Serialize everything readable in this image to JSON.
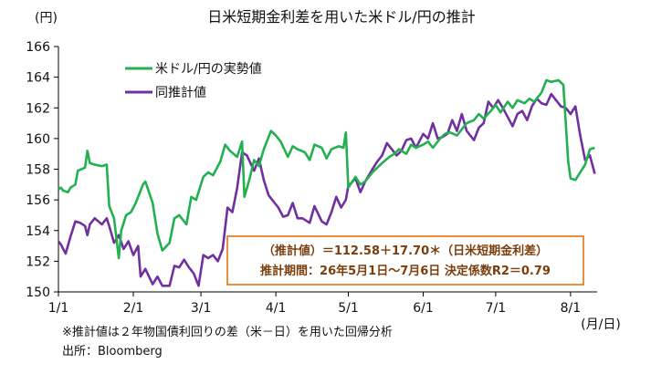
{
  "chart_data": {
    "type": "line",
    "title": "日米短期金利差を用いた米ドル/円の推計",
    "ylabel": "(円)",
    "xlabel": "(月/日)",
    "ylim": [
      150,
      166
    ],
    "yticks": [
      150,
      152,
      154,
      156,
      158,
      160,
      162,
      164,
      166
    ],
    "xlim": [
      "2026-01-01",
      "2026-08-12"
    ],
    "xticks": [
      {
        "date": "2026-01-01",
        "label": "1/1"
      },
      {
        "date": "2026-02-01",
        "label": "2/1"
      },
      {
        "date": "2026-03-01",
        "label": "3/1"
      },
      {
        "date": "2026-04-01",
        "label": "4/1"
      },
      {
        "date": "2026-05-01",
        "label": "5/1"
      },
      {
        "date": "2026-06-01",
        "label": "6/1"
      },
      {
        "date": "2026-07-01",
        "label": "7/1"
      },
      {
        "date": "2026-08-01",
        "label": "8/1"
      }
    ],
    "grid": false,
    "legend_position": "top-left",
    "series": [
      {
        "name": "米ドル/円の実勢値",
        "color": "#22b150",
        "points": [
          [
            "2026-01-01",
            156.7
          ],
          [
            "2026-01-02",
            156.8
          ],
          [
            "2026-01-03",
            156.6
          ],
          [
            "2026-01-05",
            156.5
          ],
          [
            "2026-01-06",
            156.8
          ],
          [
            "2026-01-08",
            157.0
          ],
          [
            "2026-01-09",
            157.9
          ],
          [
            "2026-01-12",
            158.1
          ],
          [
            "2026-01-13",
            159.2
          ],
          [
            "2026-01-14",
            158.4
          ],
          [
            "2026-01-16",
            158.3
          ],
          [
            "2026-01-19",
            158.2
          ],
          [
            "2026-01-21",
            158.3
          ],
          [
            "2026-01-22",
            155.6
          ],
          [
            "2026-01-24",
            154.8
          ],
          [
            "2026-01-26",
            152.2
          ],
          [
            "2026-01-27",
            154.0
          ],
          [
            "2026-01-29",
            155.0
          ],
          [
            "2026-01-31",
            155.2
          ],
          [
            "2026-02-02",
            155.8
          ],
          [
            "2026-02-05",
            157.0
          ],
          [
            "2026-02-06",
            157.2
          ],
          [
            "2026-02-09",
            155.8
          ],
          [
            "2026-02-11",
            153.8
          ],
          [
            "2026-02-13",
            152.7
          ],
          [
            "2026-02-16",
            153.2
          ],
          [
            "2026-02-18",
            154.8
          ],
          [
            "2026-02-20",
            155.0
          ],
          [
            "2026-02-23",
            154.4
          ],
          [
            "2026-02-25",
            156.2
          ],
          [
            "2026-02-27",
            156.0
          ],
          [
            "2026-03-02",
            157.5
          ],
          [
            "2026-03-04",
            157.8
          ],
          [
            "2026-03-06",
            157.6
          ],
          [
            "2026-03-09",
            158.5
          ],
          [
            "2026-03-11",
            159.6
          ],
          [
            "2026-03-13",
            159.2
          ],
          [
            "2026-03-16",
            158.8
          ],
          [
            "2026-03-18",
            159.8
          ],
          [
            "2026-03-19",
            156.2
          ],
          [
            "2026-03-21",
            157.3
          ],
          [
            "2026-03-23",
            158.6
          ],
          [
            "2026-03-25",
            158.2
          ],
          [
            "2026-03-27",
            159.3
          ],
          [
            "2026-03-30",
            160.5
          ],
          [
            "2026-04-01",
            160.2
          ],
          [
            "2026-04-03",
            159.8
          ],
          [
            "2026-04-06",
            158.8
          ],
          [
            "2026-04-08",
            159.5
          ],
          [
            "2026-04-10",
            159.3
          ],
          [
            "2026-04-13",
            159.1
          ],
          [
            "2026-04-15",
            158.6
          ],
          [
            "2026-04-17",
            159.6
          ],
          [
            "2026-04-20",
            159.4
          ],
          [
            "2026-04-22",
            158.7
          ],
          [
            "2026-04-24",
            159.3
          ],
          [
            "2026-04-27",
            159.5
          ],
          [
            "2026-04-29",
            159.4
          ],
          [
            "2026-04-30",
            160.4
          ],
          [
            "2026-05-01",
            156.8
          ],
          [
            "2026-05-04",
            157.5
          ],
          [
            "2026-05-06",
            157.0
          ],
          [
            "2026-05-08",
            157.2
          ],
          [
            "2026-05-11",
            157.8
          ],
          [
            "2026-05-13",
            158.1
          ],
          [
            "2026-05-15",
            158.4
          ],
          [
            "2026-05-18",
            158.8
          ],
          [
            "2026-05-20",
            159.0
          ],
          [
            "2026-05-22",
            159.3
          ],
          [
            "2026-05-25",
            159.0
          ],
          [
            "2026-05-27",
            159.6
          ],
          [
            "2026-05-29",
            159.4
          ],
          [
            "2026-06-01",
            159.6
          ],
          [
            "2026-06-03",
            159.8
          ],
          [
            "2026-06-05",
            159.4
          ],
          [
            "2026-06-08",
            160.0
          ],
          [
            "2026-06-10",
            160.3
          ],
          [
            "2026-06-12",
            160.4
          ],
          [
            "2026-06-15",
            160.2
          ],
          [
            "2026-06-17",
            160.6
          ],
          [
            "2026-06-19",
            161.0
          ],
          [
            "2026-06-22",
            161.2
          ],
          [
            "2026-06-24",
            161.6
          ],
          [
            "2026-06-26",
            161.3
          ],
          [
            "2026-06-29",
            161.8
          ],
          [
            "2026-07-01",
            162.2
          ],
          [
            "2026-07-03",
            161.7
          ],
          [
            "2026-07-06",
            162.4
          ],
          [
            "2026-07-08",
            162.0
          ],
          [
            "2026-07-10",
            162.5
          ],
          [
            "2026-07-13",
            162.3
          ],
          [
            "2026-07-15",
            162.6
          ],
          [
            "2026-07-17",
            162.4
          ],
          [
            "2026-07-20",
            163.0
          ],
          [
            "2026-07-22",
            163.8
          ],
          [
            "2026-07-24",
            163.7
          ],
          [
            "2026-07-27",
            163.8
          ],
          [
            "2026-07-29",
            163.5
          ],
          [
            "2026-07-31",
            158.5
          ],
          [
            "2026-08-01",
            157.4
          ],
          [
            "2026-08-03",
            157.3
          ],
          [
            "2026-08-05",
            157.8
          ],
          [
            "2026-08-07",
            158.3
          ],
          [
            "2026-08-09",
            159.3
          ],
          [
            "2026-08-11",
            159.4
          ]
        ]
      },
      {
        "name": "同推計値",
        "color": "#7030a0",
        "points": [
          [
            "2026-01-01",
            153.3
          ],
          [
            "2026-01-02",
            153.1
          ],
          [
            "2026-01-04",
            152.5
          ],
          [
            "2026-01-06",
            153.6
          ],
          [
            "2026-01-08",
            154.6
          ],
          [
            "2026-01-10",
            154.5
          ],
          [
            "2026-01-12",
            154.3
          ],
          [
            "2026-01-13",
            153.7
          ],
          [
            "2026-01-14",
            154.4
          ],
          [
            "2026-01-16",
            154.8
          ],
          [
            "2026-01-19",
            154.4
          ],
          [
            "2026-01-21",
            154.8
          ],
          [
            "2026-01-22",
            154.3
          ],
          [
            "2026-01-24",
            153.2
          ],
          [
            "2026-01-26",
            153.7
          ],
          [
            "2026-01-28",
            152.8
          ],
          [
            "2026-01-30",
            153.3
          ],
          [
            "2026-02-01",
            152.4
          ],
          [
            "2026-02-03",
            153.0
          ],
          [
            "2026-02-04",
            151.0
          ],
          [
            "2026-02-06",
            151.5
          ],
          [
            "2026-02-09",
            150.5
          ],
          [
            "2026-02-11",
            151.0
          ],
          [
            "2026-02-13",
            150.4
          ],
          [
            "2026-02-16",
            150.4
          ],
          [
            "2026-02-18",
            151.7
          ],
          [
            "2026-02-20",
            151.6
          ],
          [
            "2026-02-22",
            152.1
          ],
          [
            "2026-02-24",
            151.6
          ],
          [
            "2026-02-26",
            151.2
          ],
          [
            "2026-02-28",
            150.4
          ],
          [
            "2026-03-02",
            152.4
          ],
          [
            "2026-03-04",
            152.2
          ],
          [
            "2026-03-06",
            152.4
          ],
          [
            "2026-03-08",
            152.0
          ],
          [
            "2026-03-10",
            152.8
          ],
          [
            "2026-03-12",
            155.5
          ],
          [
            "2026-03-14",
            155.2
          ],
          [
            "2026-03-16",
            156.8
          ],
          [
            "2026-03-18",
            159.1
          ],
          [
            "2026-03-20",
            158.9
          ],
          [
            "2026-03-23",
            157.9
          ],
          [
            "2026-03-25",
            158.7
          ],
          [
            "2026-03-27",
            157.3
          ],
          [
            "2026-03-29",
            156.3
          ],
          [
            "2026-03-31",
            155.9
          ],
          [
            "2026-04-02",
            155.5
          ],
          [
            "2026-04-04",
            154.9
          ],
          [
            "2026-04-06",
            155.0
          ],
          [
            "2026-04-08",
            155.8
          ],
          [
            "2026-04-10",
            154.8
          ],
          [
            "2026-04-12",
            154.8
          ],
          [
            "2026-04-15",
            154.5
          ],
          [
            "2026-04-17",
            155.6
          ],
          [
            "2026-04-20",
            154.6
          ],
          [
            "2026-04-22",
            154.4
          ],
          [
            "2026-04-24",
            155.2
          ],
          [
            "2026-04-26",
            156.2
          ],
          [
            "2026-04-28",
            155.5
          ],
          [
            "2026-04-30",
            156.0
          ],
          [
            "2026-05-01",
            156.9
          ],
          [
            "2026-05-04",
            157.4
          ],
          [
            "2026-05-06",
            156.5
          ],
          [
            "2026-05-08",
            157.2
          ],
          [
            "2026-05-11",
            158.0
          ],
          [
            "2026-05-13",
            158.5
          ],
          [
            "2026-05-15",
            158.9
          ],
          [
            "2026-05-17",
            159.7
          ],
          [
            "2026-05-19",
            159.3
          ],
          [
            "2026-05-21",
            158.9
          ],
          [
            "2026-05-23",
            159.2
          ],
          [
            "2026-05-25",
            159.9
          ],
          [
            "2026-05-27",
            160.0
          ],
          [
            "2026-05-29",
            159.4
          ],
          [
            "2026-06-01",
            160.3
          ],
          [
            "2026-06-03",
            160.0
          ],
          [
            "2026-06-05",
            161.0
          ],
          [
            "2026-06-07",
            160.0
          ],
          [
            "2026-06-09",
            160.1
          ],
          [
            "2026-06-11",
            160.3
          ],
          [
            "2026-06-13",
            161.2
          ],
          [
            "2026-06-15",
            160.5
          ],
          [
            "2026-06-17",
            161.6
          ],
          [
            "2026-06-19",
            160.5
          ],
          [
            "2026-06-22",
            159.9
          ],
          [
            "2026-06-24",
            160.7
          ],
          [
            "2026-06-26",
            161.0
          ],
          [
            "2026-06-28",
            162.4
          ],
          [
            "2026-06-30",
            162.0
          ],
          [
            "2026-07-02",
            162.5
          ],
          [
            "2026-07-04",
            162.0
          ],
          [
            "2026-07-06",
            161.4
          ],
          [
            "2026-07-08",
            160.8
          ],
          [
            "2026-07-10",
            161.6
          ],
          [
            "2026-07-12",
            161.8
          ],
          [
            "2026-07-14",
            161.2
          ],
          [
            "2026-07-16",
            162.1
          ],
          [
            "2026-07-18",
            162.6
          ],
          [
            "2026-07-20",
            162.3
          ],
          [
            "2026-07-22",
            162.2
          ],
          [
            "2026-07-24",
            162.9
          ],
          [
            "2026-07-26",
            162.5
          ],
          [
            "2026-07-28",
            162.1
          ],
          [
            "2026-07-30",
            162.0
          ],
          [
            "2026-07-31",
            161.8
          ],
          [
            "2026-08-01",
            161.6
          ],
          [
            "2026-08-03",
            162.1
          ],
          [
            "2026-08-05",
            160.2
          ],
          [
            "2026-08-07",
            158.6
          ],
          [
            "2026-08-09",
            158.9
          ],
          [
            "2026-08-11",
            157.7
          ]
        ]
      }
    ]
  },
  "annotation": {
    "line1": "（推計値）＝112.58＋17.70＊（日米短期金利差）",
    "line2": "推計期間：26年5月1日～7月6日  決定係数R2＝0.79",
    "border_color": "#e06c00"
  },
  "notes": {
    "note1": "※推計値は２年物国債利回りの差（米－日）を用いた回帰分析",
    "source": "出所：Bloomberg"
  }
}
